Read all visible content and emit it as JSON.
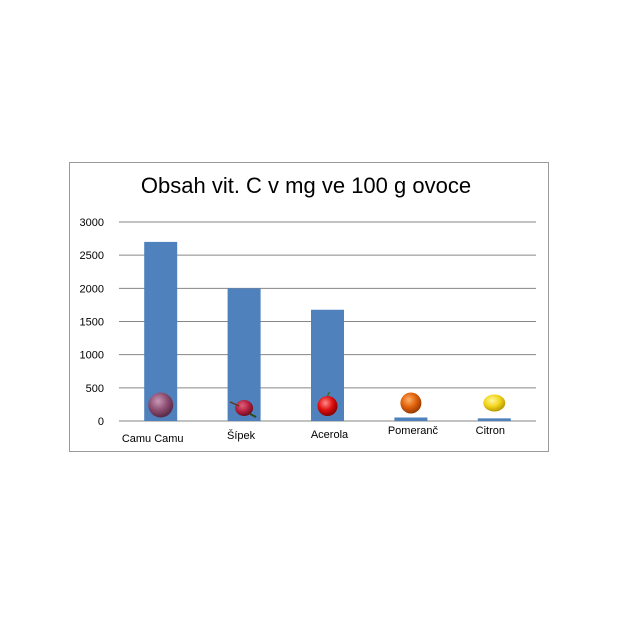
{
  "colors": {
    "bar": "#4f81bd",
    "grid": "#868686",
    "frame": "#9a9a9a"
  },
  "chart_data": {
    "type": "bar",
    "title": "Obsah vit. C v mg ve 100 g ovoce",
    "xlabel": "",
    "ylabel": "",
    "ylim": [
      0,
      3000
    ],
    "yticks": [
      0,
      500,
      1000,
      1500,
      2000,
      2500,
      3000
    ],
    "grid": true,
    "legend": "none",
    "categories": [
      "Camu Camu",
      "Šípek",
      "Acerola",
      "Pomeranč",
      "Citron"
    ],
    "values": [
      2700,
      2000,
      1677,
      53,
      40
    ],
    "fruit_icons": [
      "camu-camu-fruit-icon",
      "rosehip-fruit-icon",
      "acerola-fruit-icon",
      "orange-fruit-icon",
      "lemon-fruit-icon"
    ]
  }
}
